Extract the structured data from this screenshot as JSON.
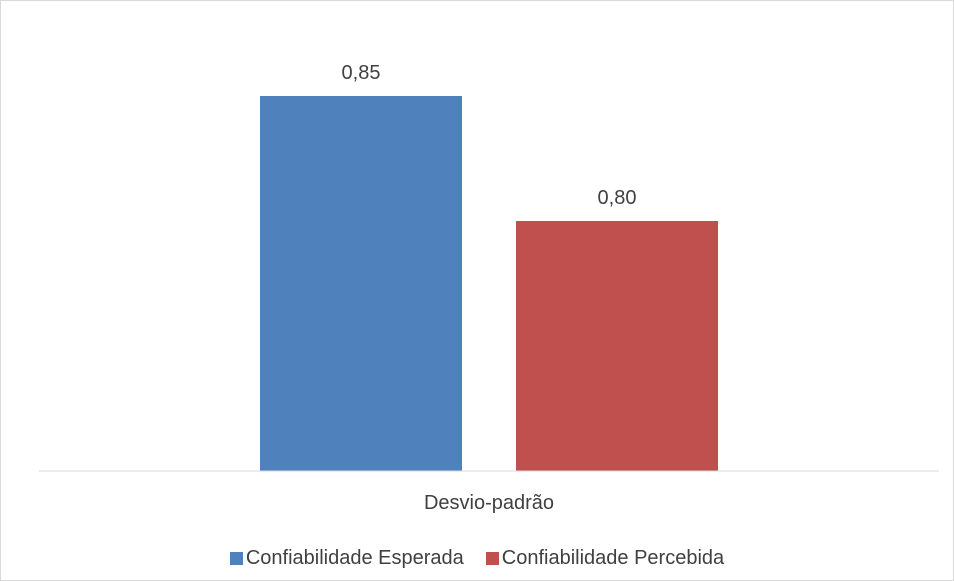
{
  "chart_data": {
    "type": "bar",
    "title": "",
    "xlabel": "",
    "ylabel": "",
    "categories": [
      "Desvio-padrão"
    ],
    "series": [
      {
        "name": "Confiabilidade Esperada",
        "values": [
          0.85
        ],
        "label": "0,85",
        "color": "#4f81bd"
      },
      {
        "name": "Confiabilidade Percebida",
        "values": [
          0.8
        ],
        "label": "0,80",
        "color": "#c0504d"
      }
    ],
    "ylim": [
      0.7,
      0.87
    ],
    "grid": false,
    "legend_position": "bottom"
  }
}
